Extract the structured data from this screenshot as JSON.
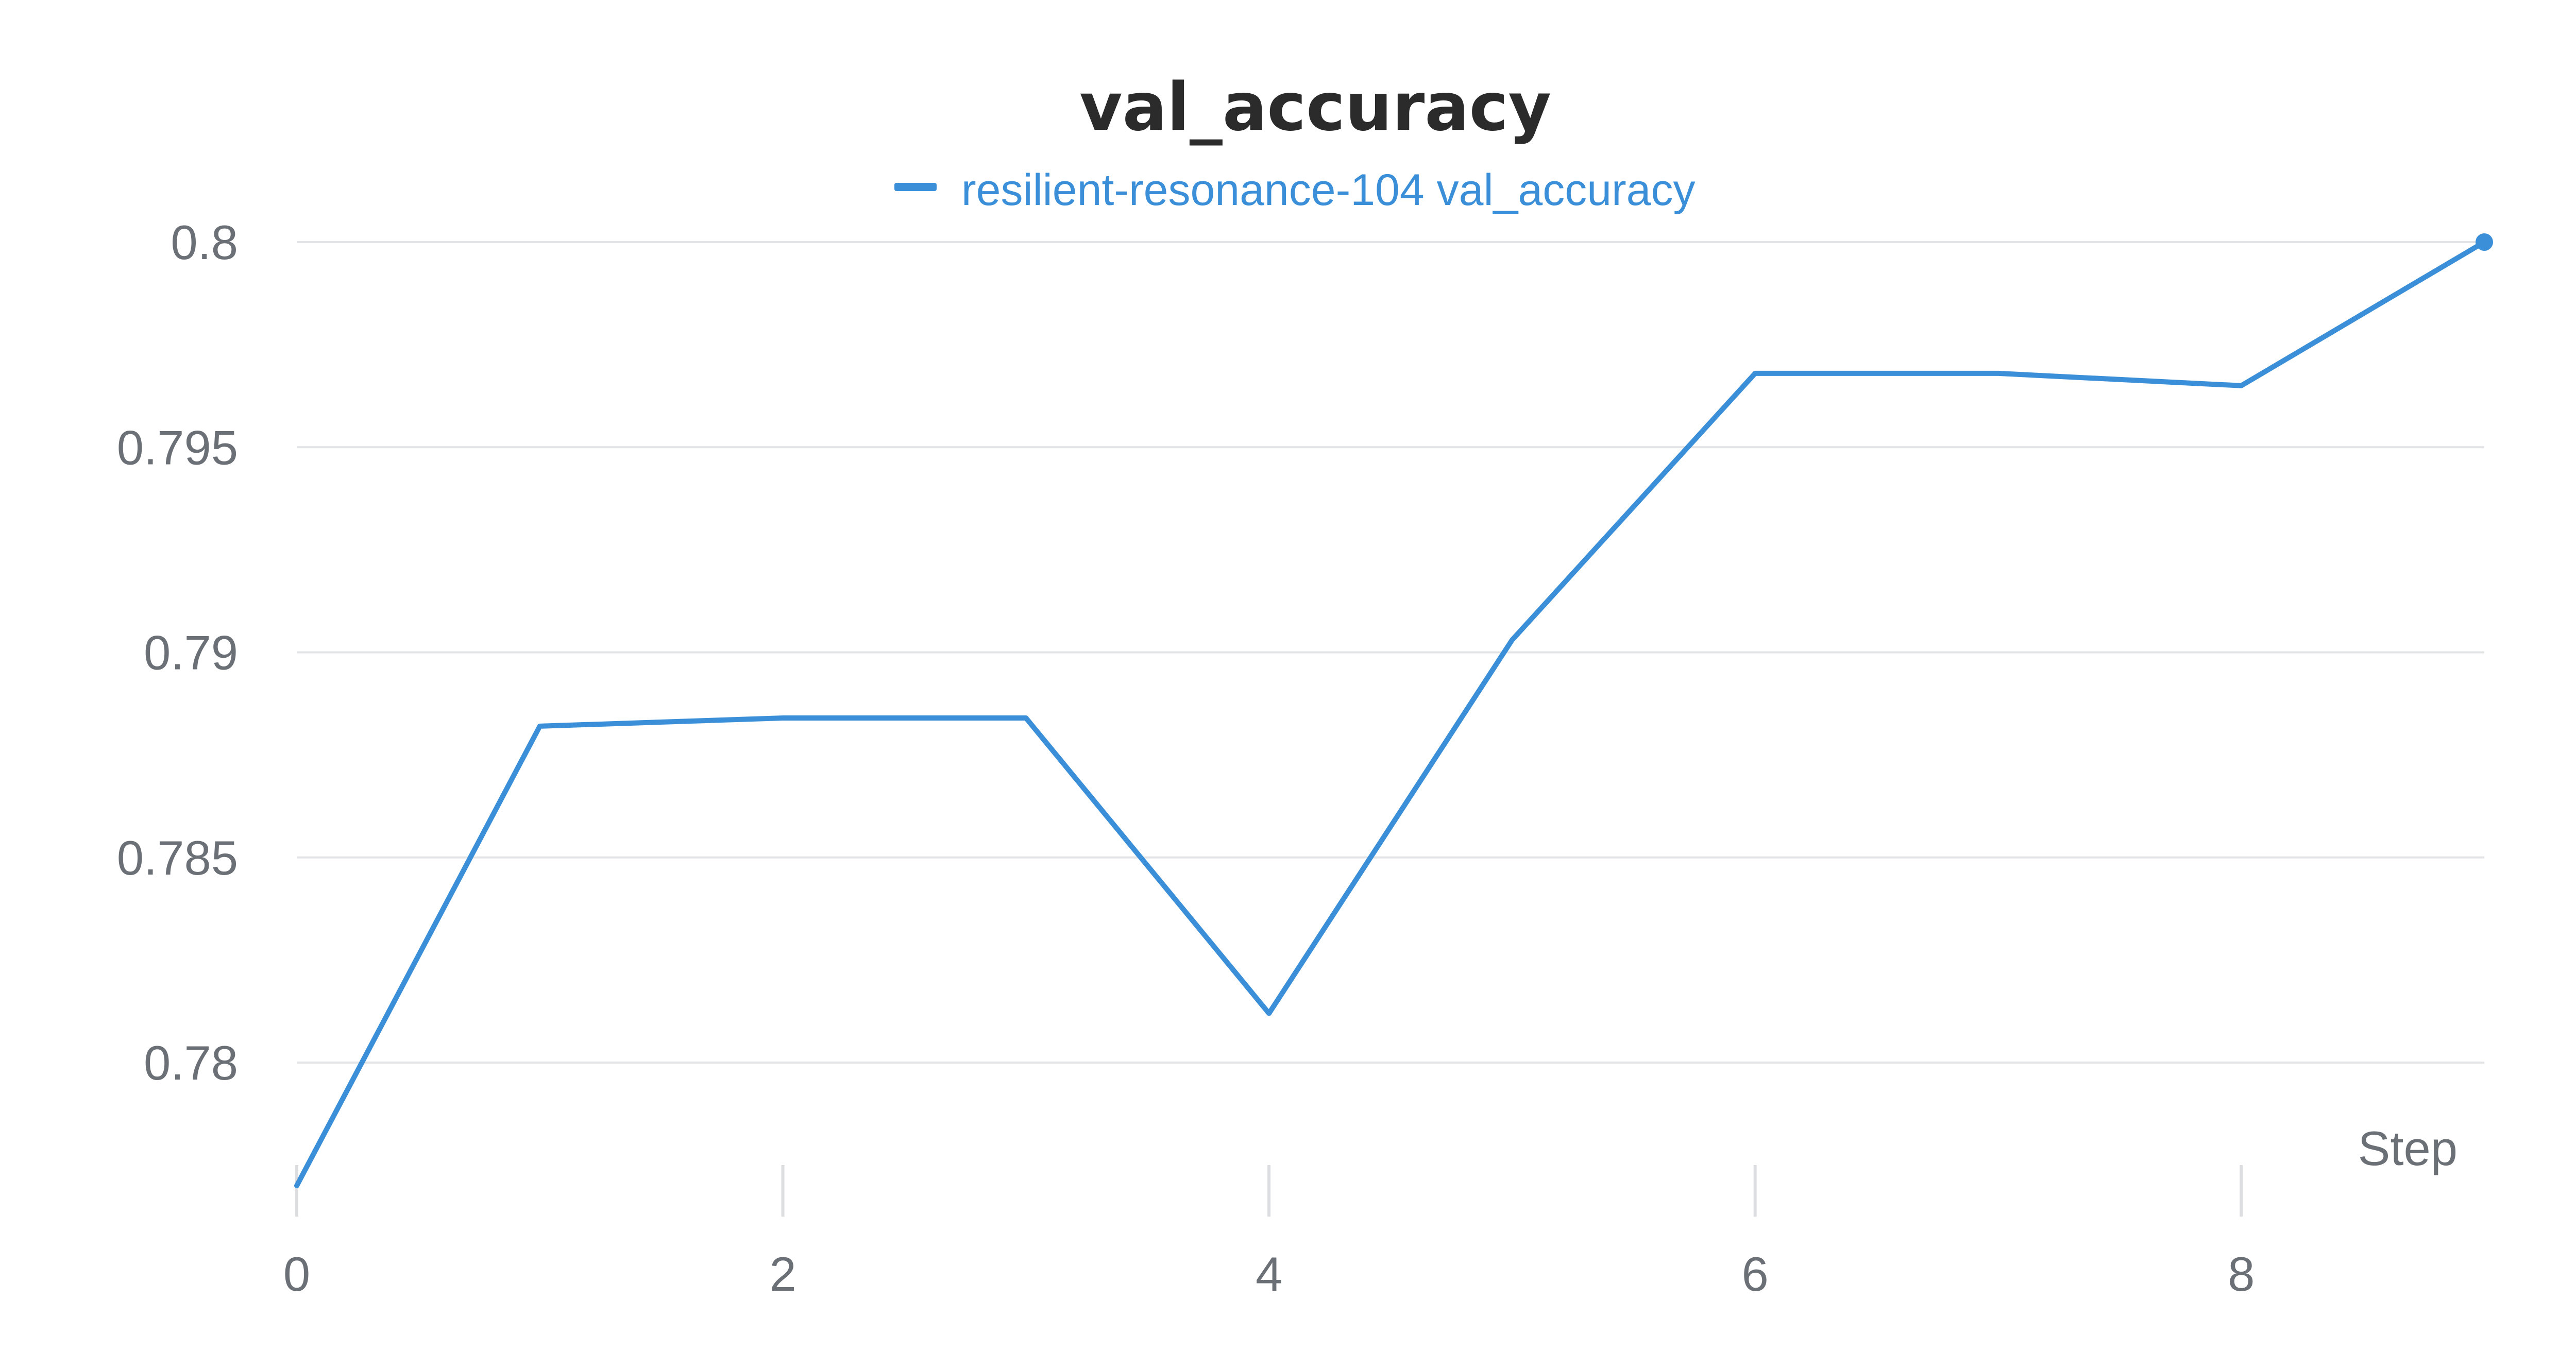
{
  "chart_data": {
    "type": "line",
    "title": "val_accuracy",
    "xlabel": "Step",
    "ylabel": "",
    "xlim": [
      0,
      9
    ],
    "ylim": [
      0.7769,
      0.8
    ],
    "x_ticks": [
      0,
      2,
      4,
      6,
      8
    ],
    "x_tick_labels": [
      "0",
      "2",
      "4",
      "6",
      "8"
    ],
    "y_ticks": [
      0.78,
      0.785,
      0.79,
      0.795,
      0.8
    ],
    "y_tick_labels": [
      "0.78",
      "0.785",
      "0.79",
      "0.795",
      "0.8"
    ],
    "grid": true,
    "legend": {
      "position": "top-center"
    },
    "series": [
      {
        "name": "resilient-resonance-104 val_accuracy",
        "color": "#3a8fd8",
        "x": [
          0,
          1,
          2,
          3,
          4,
          5,
          6,
          7,
          8,
          9
        ],
        "values": [
          0.777,
          0.7882,
          0.7884,
          0.7884,
          0.7812,
          0.7903,
          0.7968,
          0.7968,
          0.7965,
          0.8
        ]
      }
    ]
  }
}
